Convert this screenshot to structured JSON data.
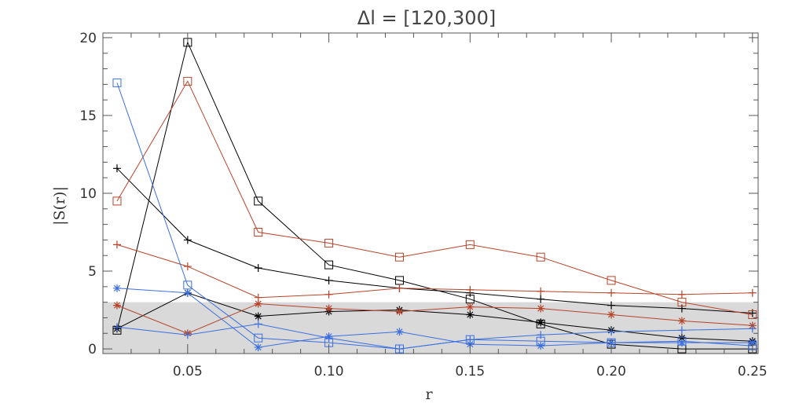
{
  "chart_data": {
    "type": "line",
    "title": "Δl  =  [120,300]",
    "xlabel": "r",
    "ylabel": "|S(r)|",
    "xlim": [
      0.02,
      0.252
    ],
    "ylim": [
      -0.3,
      20.3
    ],
    "xticks": [
      0.05,
      0.1,
      0.15,
      0.2,
      0.25
    ],
    "xtick_labels": [
      "0.05",
      "0.10",
      "0.15",
      "0.20",
      "0.25"
    ],
    "yticks": [
      0,
      5,
      10,
      15,
      20
    ],
    "ytick_labels": [
      "0",
      "5",
      "10",
      "15",
      "20"
    ],
    "shaded_band": [
      0,
      3.0
    ],
    "grid": false,
    "x": [
      0.025,
      0.05,
      0.075,
      0.1,
      0.125,
      0.15,
      0.175,
      0.2,
      0.225,
      0.25
    ],
    "series": [
      {
        "color": "#000000",
        "marker": "square",
        "values": [
          1.2,
          19.7,
          9.5,
          5.4,
          4.4,
          3.2,
          1.6,
          0.3,
          0.0,
          0.0
        ]
      },
      {
        "color": "#000000",
        "marker": "plus",
        "values": [
          11.6,
          7.0,
          5.2,
          4.4,
          3.9,
          3.6,
          3.2,
          2.8,
          2.6,
          2.3
        ]
      },
      {
        "color": "#000000",
        "marker": "asterisk",
        "values": [
          1.3,
          3.6,
          2.1,
          2.4,
          2.5,
          2.2,
          1.7,
          1.2,
          0.7,
          0.5
        ]
      },
      {
        "color": "#b5442a",
        "marker": "square",
        "values": [
          9.5,
          17.2,
          7.5,
          6.8,
          5.9,
          6.7,
          5.9,
          4.4,
          3.0,
          2.2
        ]
      },
      {
        "color": "#b5442a",
        "marker": "plus",
        "values": [
          6.7,
          5.3,
          3.3,
          3.5,
          3.9,
          3.8,
          3.7,
          3.6,
          3.5,
          3.6
        ]
      },
      {
        "color": "#b5442a",
        "marker": "asterisk",
        "values": [
          2.8,
          1.0,
          2.9,
          2.6,
          2.4,
          2.7,
          2.6,
          2.2,
          1.8,
          1.5
        ]
      },
      {
        "color": "#3b6fe0",
        "marker": "square",
        "values": [
          17.1,
          4.1,
          0.7,
          0.4,
          0.0,
          0.6,
          0.5,
          0.4,
          0.5,
          0.2
        ]
      },
      {
        "color": "#3b6fe0",
        "marker": "plus",
        "values": [
          1.4,
          0.9,
          1.6,
          0.7,
          0.0,
          0.6,
          0.9,
          1.1,
          1.2,
          1.3
        ]
      },
      {
        "color": "#3b6fe0",
        "marker": "asterisk",
        "values": [
          3.9,
          3.6,
          0.1,
          0.8,
          1.1,
          0.3,
          0.2,
          0.4,
          0.4,
          0.4
        ]
      }
    ]
  }
}
